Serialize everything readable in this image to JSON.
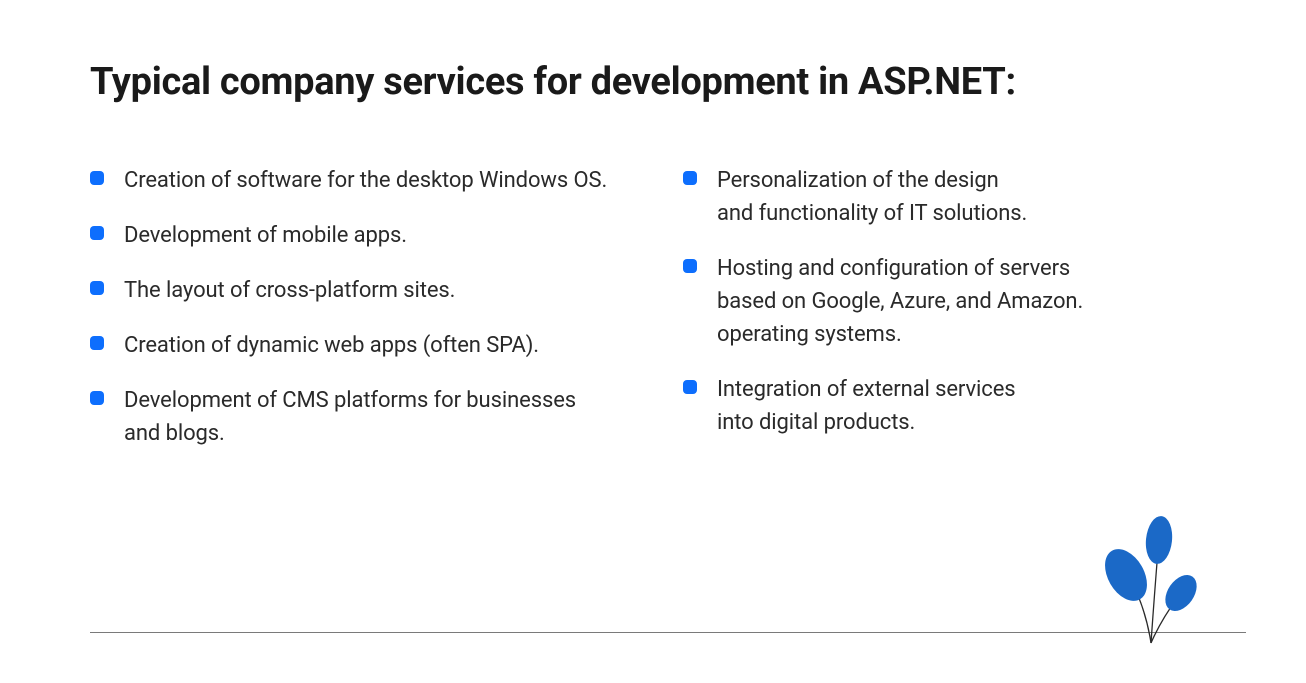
{
  "title": "Typical company services for development in ASP.NET:",
  "bullet_color": "#0d6efd",
  "text_color": "#2a2a2a",
  "title_color": "#1a1a1a",
  "background_color": "#ffffff",
  "hr_color": "#7a7a7a",
  "plant_leaf_color": "#1b69c7",
  "plant_stem_color": "#2a2a2a",
  "title_fontsize": 38,
  "item_fontsize": 22,
  "left_column": [
    "Creation of software for the desktop Windows OS.",
    "Development of mobile apps.",
    "The layout of cross-platform sites.",
    "Creation of dynamic web apps (often SPA).",
    "Development of CMS platforms for businesses\nand blogs."
  ],
  "right_column": [
    "Personalization of the design\nand functionality of IT solutions.",
    "Hosting and configuration of servers\nbased on Google, Azure, and Amazon.\noperating systems.",
    "Integration of external services\ninto digital products."
  ]
}
